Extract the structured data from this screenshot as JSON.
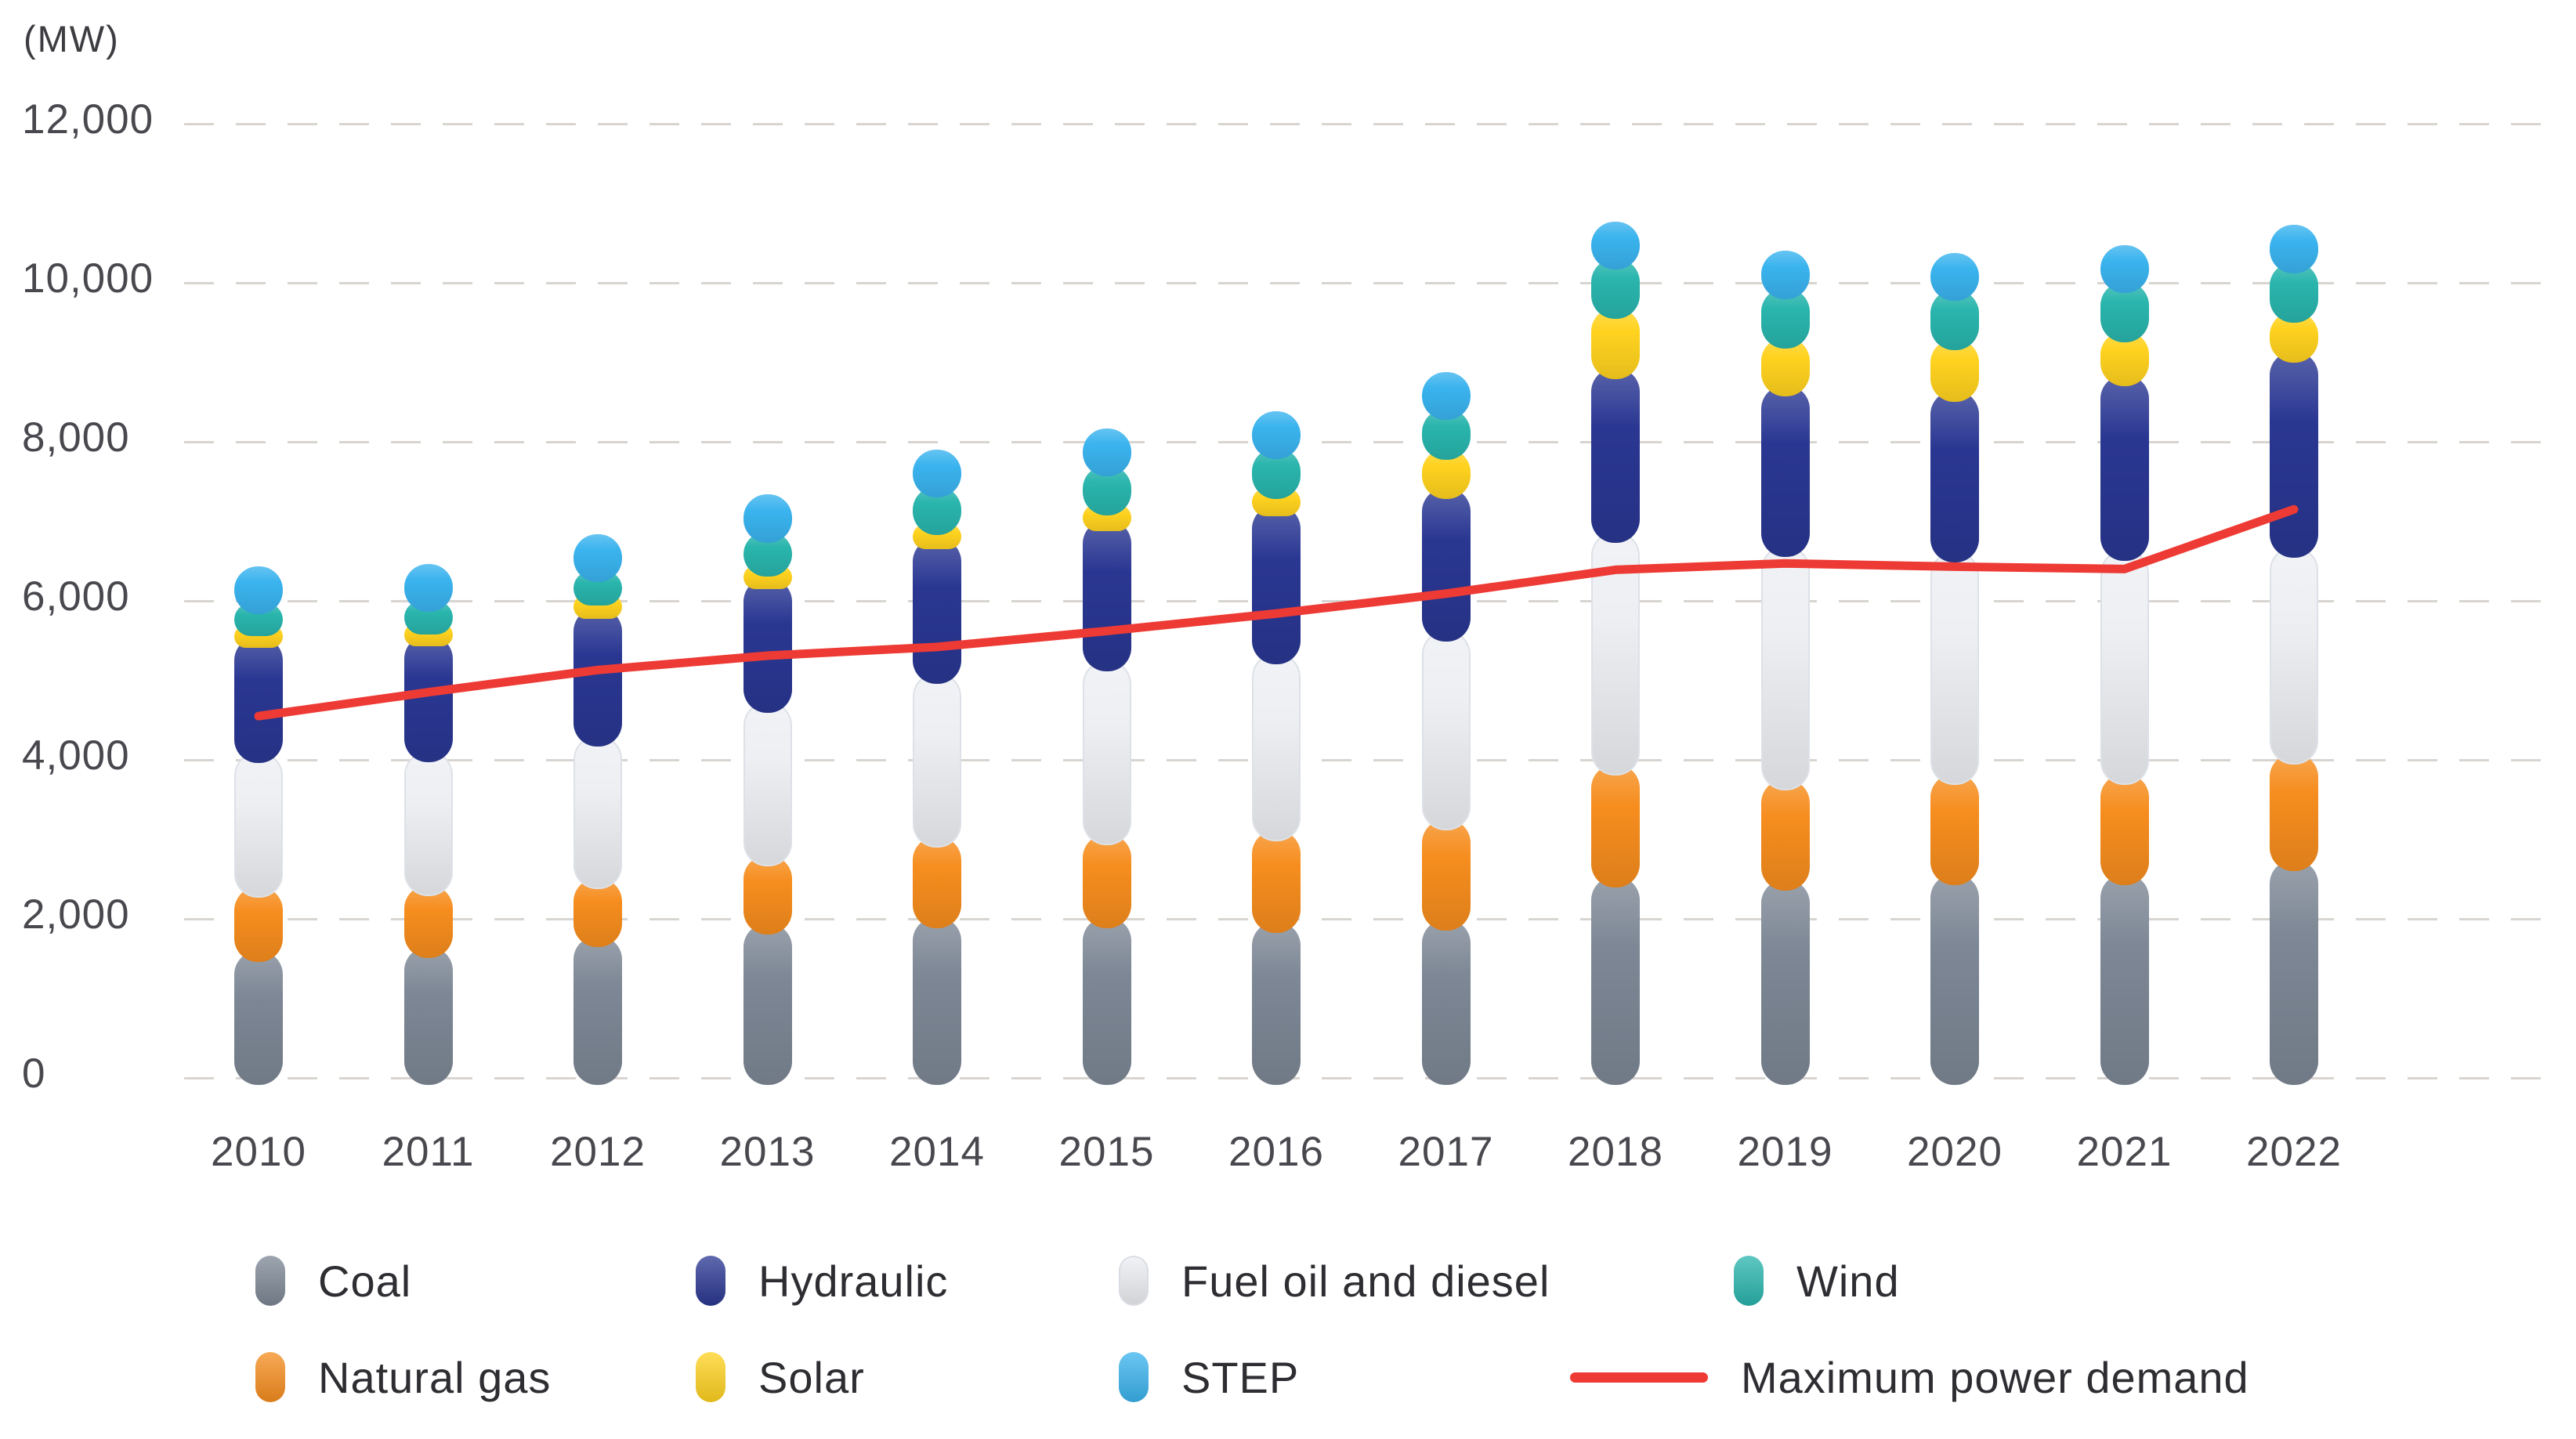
{
  "page": {
    "background": "#ffffff"
  },
  "axis": {
    "unit_label": "(MW)",
    "y_tick_labels": [
      "0",
      "2,000",
      "4,000",
      "6,000",
      "8,000",
      "10,000",
      "12,000"
    ],
    "x_tick_labels": [
      "2010",
      "2011",
      "2012",
      "2013",
      "2014",
      "2015",
      "2016",
      "2017",
      "2018",
      "2019",
      "2020",
      "2021",
      "2022"
    ]
  },
  "chart_data": {
    "type": "bar",
    "stacked": true,
    "title": "",
    "xlabel": "",
    "ylabel": "(MW)",
    "ylim": [
      0,
      12000
    ],
    "yticks": [
      0,
      2000,
      4000,
      6000,
      8000,
      10000,
      12000
    ],
    "grid": "horizontal-dashed",
    "legend_position": "bottom",
    "categories": [
      2010,
      2011,
      2012,
      2013,
      2014,
      2015,
      2016,
      2017,
      2018,
      2019,
      2020,
      2021,
      2022
    ],
    "series": [
      {
        "name": "Coal",
        "color": "#7d8795",
        "values": [
          1600,
          1650,
          1780,
          1940,
          2020,
          2020,
          1960,
          1990,
          2530,
          2490,
          2560,
          2560,
          2740
        ]
      },
      {
        "name": "Natural gas",
        "color": "#f68d1e",
        "values": [
          800,
          770,
          730,
          860,
          1010,
          1045,
          1150,
          1260,
          1410,
          1260,
          1260,
          1260,
          1340
        ]
      },
      {
        "name": "Fuel oil and diesel",
        "color": "#edeff3",
        "values": [
          1700,
          1690,
          1800,
          1930,
          2060,
          2185,
          2225,
          2375,
          2925,
          2935,
          2800,
          2820,
          2600
        ]
      },
      {
        "name": "Hydraulic",
        "color": "#2a3792",
        "values": [
          1450,
          1460,
          1600,
          1560,
          1700,
          1765,
          1870,
          1790,
          2060,
          2020,
          2020,
          2200,
          2455
        ]
      },
      {
        "name": "Solar",
        "color": "#ffd21f",
        "values": [
          140,
          140,
          170,
          150,
          180,
          195,
          215,
          500,
          760,
          610,
          650,
          550,
          505
        ]
      },
      {
        "name": "Wind",
        "color": "#29b5ad",
        "values": [
          280,
          290,
          290,
          430,
          470,
          490,
          500,
          500,
          620,
          620,
          620,
          620,
          620
        ]
      },
      {
        "name": "STEP",
        "color": "#3ab3ee",
        "values": [
          465,
          465,
          465,
          465,
          465,
          465,
          465,
          465,
          465,
          465,
          465,
          465,
          465
        ]
      }
    ],
    "line_series": {
      "name": "Maximum power demand",
      "color": "#ee3a34",
      "values": [
        4550,
        4850,
        5130,
        5310,
        5420,
        5620,
        5840,
        6090,
        6390,
        6470,
        6430,
        6400,
        7150
      ]
    }
  },
  "legend": {
    "row1": [
      {
        "label": "Coal",
        "series": "Coal"
      },
      {
        "label": "Hydraulic",
        "series": "Hydraulic"
      },
      {
        "label": "Fuel oil and diesel",
        "series": "Fuel oil and diesel"
      },
      {
        "label": "Wind",
        "series": "Wind"
      }
    ],
    "row2": [
      {
        "label": "Natural gas",
        "series": "Natural gas"
      },
      {
        "label": "Solar",
        "series": "Solar"
      },
      {
        "label": "STEP",
        "series": "STEP"
      },
      {
        "label": "Maximum power demand",
        "series": "line"
      }
    ]
  }
}
